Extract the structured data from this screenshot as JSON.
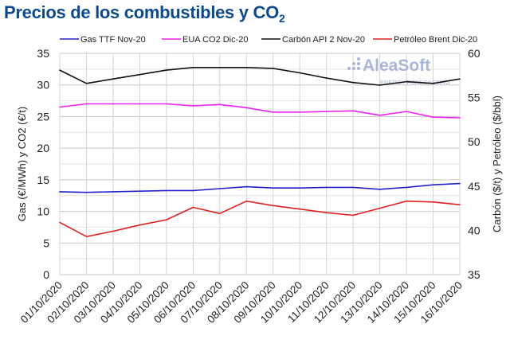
{
  "title": {
    "text": "Precios de los combustibles y CO",
    "sub": "2"
  },
  "watermark": {
    "brand": "AleaSoft",
    "tagline": "ENERGY FORECASTING"
  },
  "chart_data": {
    "type": "line",
    "title": "Precios de los combustibles y CO2",
    "ylabel_left": "Gas (€/MWh) y CO2 (€/t)",
    "ylabel_right": "Carbón ($/t) y Petróleo ($/bbl)",
    "ylim_left": [
      0,
      35
    ],
    "yticks_left": [
      0,
      5,
      10,
      15,
      20,
      25,
      30,
      35
    ],
    "ylim_right": [
      35,
      60
    ],
    "yticks_right": [
      35,
      40,
      45,
      50,
      55,
      60
    ],
    "grid": true,
    "legend": "top",
    "categories": [
      "01/10/2020",
      "02/10/2020",
      "03/10/2020",
      "04/10/2020",
      "05/10/2020",
      "06/10/2020",
      "07/10/2020",
      "08/10/2020",
      "09/10/2020",
      "10/10/2020",
      "11/10/2020",
      "12/10/2020",
      "13/10/2020",
      "14/10/2020",
      "15/10/2020",
      "16/10/2020"
    ],
    "series": [
      {
        "name": "Gas TTF Nov-20",
        "axis": "left",
        "color": "#2222cc",
        "values": [
          13.1,
          13.0,
          13.1,
          13.2,
          13.3,
          13.3,
          13.6,
          13.9,
          13.7,
          13.7,
          13.8,
          13.8,
          13.5,
          13.8,
          14.2,
          14.4
        ]
      },
      {
        "name": "EUA CO2 Dic-20",
        "axis": "left",
        "color": "#ee22ee",
        "values": [
          26.5,
          27.0,
          27.0,
          27.0,
          27.0,
          26.7,
          26.9,
          26.4,
          25.7,
          25.7,
          25.8,
          25.9,
          25.2,
          25.8,
          24.9,
          24.8
        ]
      },
      {
        "name": "Carbón API 2 Nov-20",
        "axis": "right",
        "color": "#111111",
        "values": [
          58.1,
          56.6,
          57.1,
          57.6,
          58.1,
          58.4,
          58.4,
          58.4,
          58.3,
          57.8,
          57.2,
          56.7,
          56.4,
          56.8,
          56.6,
          57.1
        ]
      },
      {
        "name": "Petróleo Brent Dic-20",
        "axis": "right",
        "color": "#e02020",
        "values": [
          40.9,
          39.3,
          39.9,
          40.6,
          41.2,
          42.6,
          41.9,
          43.3,
          42.8,
          42.4,
          42.0,
          41.7,
          42.5,
          43.3,
          43.2,
          42.9
        ]
      }
    ]
  }
}
